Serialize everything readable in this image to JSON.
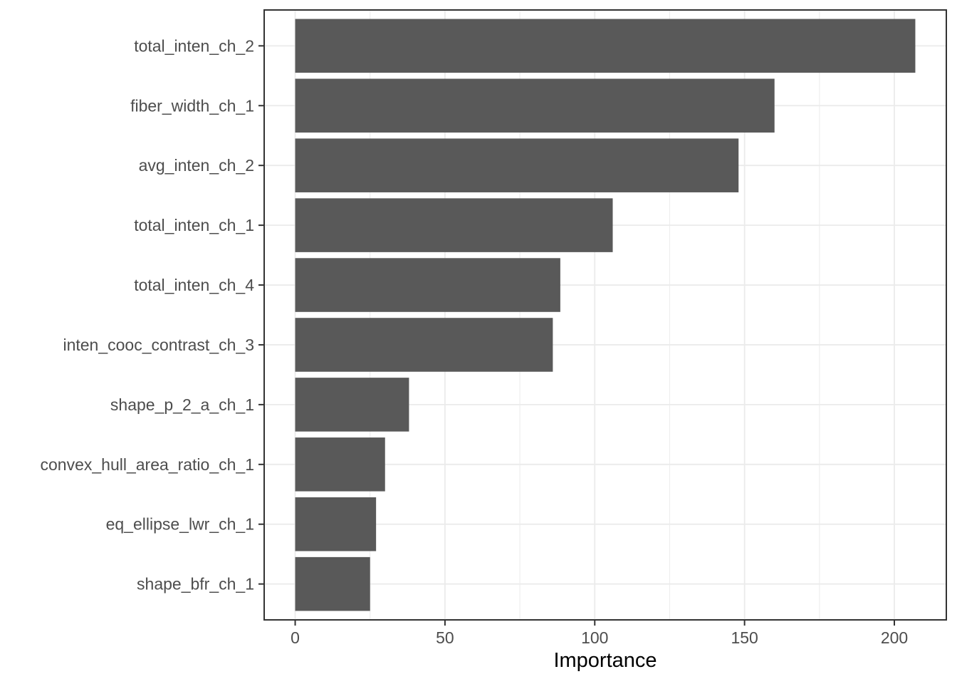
{
  "chart_data": {
    "type": "bar",
    "orientation": "horizontal",
    "title": "",
    "xlabel": "Importance",
    "ylabel": "",
    "categories": [
      "total_inten_ch_2",
      "fiber_width_ch_1",
      "avg_inten_ch_2",
      "total_inten_ch_1",
      "total_inten_ch_4",
      "inten_cooc_contrast_ch_3",
      "shape_p_2_a_ch_1",
      "convex_hull_area_ratio_ch_1",
      "eq_ellipse_lwr_ch_1",
      "shape_bfr_ch_1"
    ],
    "values": [
      207,
      160,
      148,
      106,
      88.5,
      86,
      38,
      30,
      27,
      25
    ],
    "xlim": [
      -10.35,
      217.35
    ],
    "x_major_ticks": [
      0,
      50,
      100,
      150,
      200
    ],
    "x_tick_labels": [
      "0",
      "50",
      "100",
      "150",
      "200"
    ],
    "x_minor_ticks": [
      25,
      75,
      125,
      175
    ],
    "bar_width_fraction": 0.9,
    "grid": "vertical major+minor, horizontal major at category centers",
    "legend": "none",
    "colors": {
      "bar_fill": "#595959",
      "panel_background": "#ffffff",
      "panel_border": "#333333",
      "grid_major": "#ebebeb",
      "grid_minor": "#ededed",
      "axis_tick": "#333333",
      "tick_label": "#4d4d4d",
      "axis_title": "#000000"
    }
  }
}
